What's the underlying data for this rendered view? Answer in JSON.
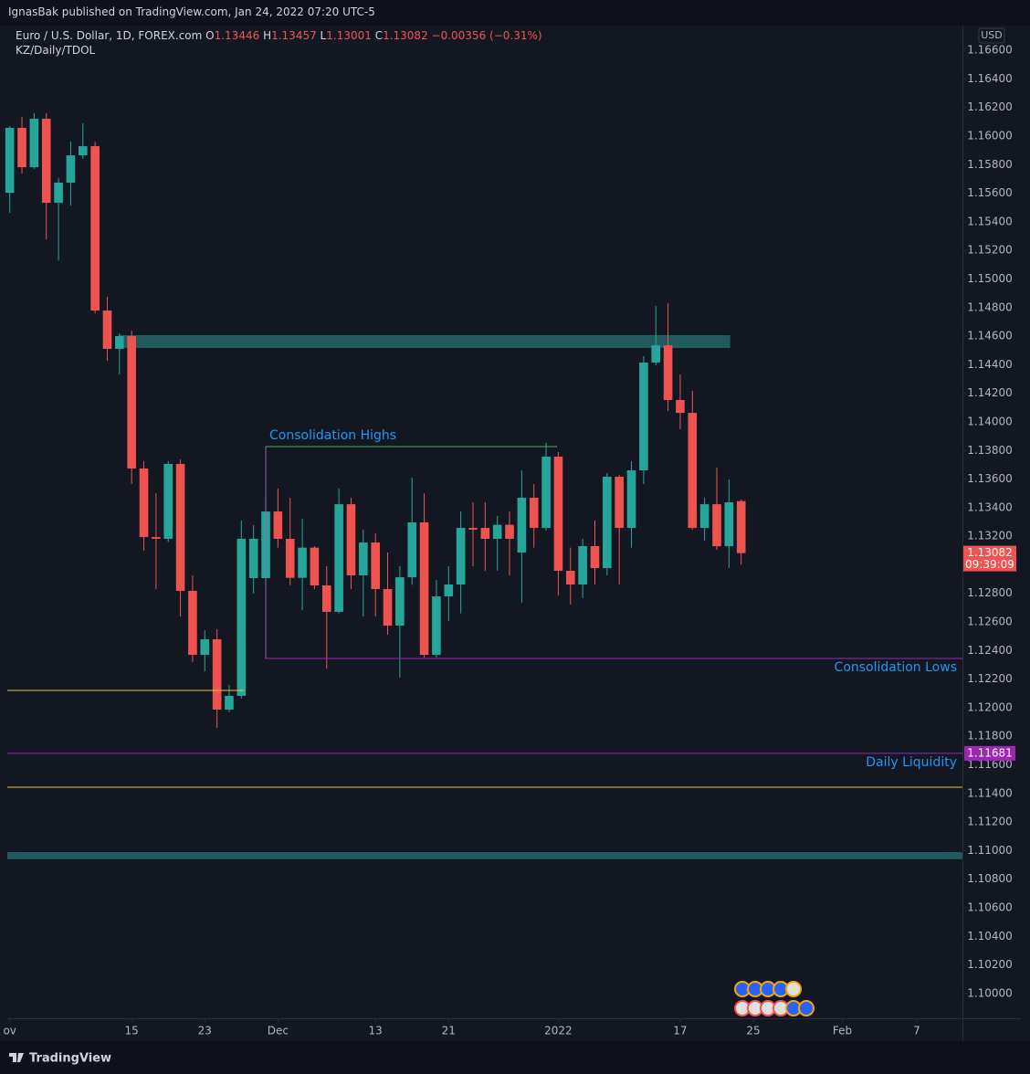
{
  "header": {
    "published": "IgnasBak published on TradingView.com, Jan 24, 2022 07:20 UTC-5",
    "symbol": "Euro / U.S. Dollar, 1D, FOREX.com",
    "ohlc_keys": [
      "O",
      "H",
      "L",
      "C"
    ],
    "change": "−0.00356 (−0.31%)",
    "indicator": "KZ/Daily/TDOL"
  },
  "chart_data": {
    "type": "candlestick",
    "up_color": "#26a69a",
    "down_color": "#ef5350",
    "open": [
      1.15603,
      1.16057,
      1.15782,
      1.16121,
      1.15533,
      1.15674,
      1.15865,
      1.15929,
      1.14779,
      1.14511,
      1.146,
      1.13674,
      1.13194,
      1.13182,
      1.13706,
      1.12818,
      1.1237,
      1.12479,
      1.11987,
      1.12083,
      1.12907,
      1.12907,
      1.13373,
      1.13182,
      1.12909,
      1.1312,
      1.12856,
      1.12671,
      1.13424,
      1.12926,
      1.13156,
      1.1283,
      1.12575,
      1.12913,
      1.13297,
      1.1237,
      1.12779,
      1.12862,
      1.13258,
      1.13258,
      1.13182,
      1.1328,
      1.13086,
      1.13469,
      1.13258,
      1.13757,
      1.12958,
      1.12862,
      1.13131,
      1.12977,
      1.13616,
      1.13258,
      1.13661,
      1.14415,
      1.14536,
      1.14153,
      1.14063,
      1.13258,
      1.13424,
      1.1313,
      1.13446
    ],
    "high": [
      1.1607,
      1.16134,
      1.16159,
      1.16159,
      1.15705,
      1.15961,
      1.16089,
      1.1596,
      1.14875,
      1.14619,
      1.14638,
      1.13725,
      1.135,
      1.13725,
      1.13737,
      1.12926,
      1.12543,
      1.1255,
      1.12159,
      1.1331,
      1.13278,
      1.135,
      1.13533,
      1.13469,
      1.13322,
      1.1313,
      1.1299,
      1.13533,
      1.13469,
      1.13246,
      1.1322,
      1.13086,
      1.1299,
      1.1361,
      1.135,
      1.12894,
      1.1299,
      1.13373,
      1.13437,
      1.13437,
      1.13342,
      1.13373,
      1.13661,
      1.13565,
      1.13853,
      1.13789,
      1.1312,
      1.13182,
      1.1331,
      1.13642,
      1.1363,
      1.13725,
      1.1446,
      1.14811,
      1.1483,
      1.14332,
      1.14217,
      1.13469,
      1.1368,
      1.13597,
      1.13457
    ],
    "low": [
      1.15463,
      1.15737,
      1.1577,
      1.15277,
      1.1513,
      1.15514,
      1.1584,
      1.1476,
      1.14428,
      1.14332,
      1.13565,
      1.13099,
      1.1283,
      1.1316,
      1.12639,
      1.12319,
      1.12255,
      1.11859,
      1.1197,
      1.12064,
      1.128,
      1.1285,
      1.1312,
      1.12858,
      1.12683,
      1.1283,
      1.12274,
      1.1266,
      1.1283,
      1.12639,
      1.12639,
      1.12511,
      1.1221,
      1.1286,
      1.12351,
      1.12351,
      1.12607,
      1.1266,
      1.1299,
      1.12958,
      1.1296,
      1.12926,
      1.12735,
      1.1312,
      1.1324,
      1.12786,
      1.12722,
      1.12767,
      1.12862,
      1.12926,
      1.12862,
      1.1312,
      1.13565,
      1.14396,
      1.14076,
      1.13948,
      1.13246,
      1.13169,
      1.13105,
      1.12978,
      1.13001
    ],
    "close": [
      1.16057,
      1.15782,
      1.16121,
      1.15533,
      1.15674,
      1.15865,
      1.15929,
      1.14779,
      1.14511,
      1.146,
      1.13674,
      1.13194,
      1.13182,
      1.13706,
      1.12818,
      1.1237,
      1.12479,
      1.11987,
      1.12083,
      1.13182,
      1.13182,
      1.13373,
      1.13182,
      1.12909,
      1.1312,
      1.12856,
      1.12671,
      1.13424,
      1.12926,
      1.13156,
      1.1283,
      1.12575,
      1.12913,
      1.13297,
      1.1237,
      1.12779,
      1.12862,
      1.13258,
      1.13246,
      1.13182,
      1.1328,
      1.13182,
      1.13469,
      1.13258,
      1.13757,
      1.12958,
      1.12862,
      1.13131,
      1.12977,
      1.13616,
      1.13258,
      1.13661,
      1.14415,
      1.14536,
      1.14153,
      1.14063,
      1.13258,
      1.13424,
      1.1313,
      1.13437,
      1.13082
    ],
    "xlim": [
      -0.2,
      78.15
    ],
    "ylim": [
      1.09827,
      1.16773
    ],
    "xticks": [
      {
        "value": 0,
        "label": "ov"
      },
      {
        "value": 10,
        "label": "15"
      },
      {
        "value": 16,
        "label": "23"
      },
      {
        "value": 22,
        "label": "Dec"
      },
      {
        "value": 30,
        "label": "13"
      },
      {
        "value": 36,
        "label": "21"
      },
      {
        "value": 45,
        "label": "2022"
      },
      {
        "value": 55,
        "label": "17"
      },
      {
        "value": 61,
        "label": "25"
      },
      {
        "value": 68.3,
        "label": "Feb"
      },
      {
        "value": 74.4,
        "label": "7"
      }
    ],
    "yticks": [
      {
        "value": 1.166,
        "label": "1.16600"
      },
      {
        "value": 1.164,
        "label": "1.16400"
      },
      {
        "value": 1.162,
        "label": "1.16200"
      },
      {
        "value": 1.16,
        "label": "1.16000"
      },
      {
        "value": 1.158,
        "label": "1.15800"
      },
      {
        "value": 1.156,
        "label": "1.15600"
      },
      {
        "value": 1.154,
        "label": "1.15400"
      },
      {
        "value": 1.152,
        "label": "1.15200"
      },
      {
        "value": 1.15,
        "label": "1.15000"
      },
      {
        "value": 1.148,
        "label": "1.14800"
      },
      {
        "value": 1.146,
        "label": "1.14600"
      },
      {
        "value": 1.144,
        "label": "1.14400"
      },
      {
        "value": 1.142,
        "label": "1.14200"
      },
      {
        "value": 1.14,
        "label": "1.14000"
      },
      {
        "value": 1.138,
        "label": "1.13800"
      },
      {
        "value": 1.136,
        "label": "1.13600"
      },
      {
        "value": 1.134,
        "label": "1.13400"
      },
      {
        "value": 1.132,
        "label": "1.13200"
      },
      {
        "value": 1.13,
        "label": "1.13000"
      },
      {
        "value": 1.128,
        "label": "1.12800"
      },
      {
        "value": 1.126,
        "label": "1.12600"
      },
      {
        "value": 1.124,
        "label": "1.12400"
      },
      {
        "value": 1.122,
        "label": "1.12200"
      },
      {
        "value": 1.12,
        "label": "1.12000"
      },
      {
        "value": 1.118,
        "label": "1.11800"
      },
      {
        "value": 1.116,
        "label": "1.11600"
      },
      {
        "value": 1.114,
        "label": "1.11400"
      },
      {
        "value": 1.112,
        "label": "1.11200"
      },
      {
        "value": 1.11,
        "label": "1.11000"
      },
      {
        "value": 1.108,
        "label": "1.10800"
      },
      {
        "value": 1.106,
        "label": "1.10600"
      },
      {
        "value": 1.104,
        "label": "1.10400"
      },
      {
        "value": 1.102,
        "label": "1.10200"
      },
      {
        "value": 1.1,
        "label": "1.10000"
      }
    ],
    "currency": "USD",
    "countdown": "09:39:09",
    "zones": [
      {
        "top": 1.14607,
        "bottom": 1.14517,
        "from": 9,
        "to": 59.1,
        "color": "#1f5a5c"
      },
      {
        "top": 1.1099,
        "bottom": 1.1094,
        "from": null,
        "to": null,
        "color": "#1f5a5c"
      }
    ],
    "lines": [
      {
        "value": 1.13827,
        "from": 21,
        "to": 44.9,
        "color": "#4caf50",
        "label": "Consolidation Highs",
        "label_position": "top-left"
      },
      {
        "value": 1.12345,
        "from": 21,
        "to": null,
        "color": "#9c27b0",
        "label": "Consolidation Lows",
        "label_position": "bottom-right"
      },
      {
        "value": 1.12121,
        "from": null,
        "to": 19.2,
        "color": "#e8c547"
      },
      {
        "value": 1.11681,
        "from": null,
        "to": null,
        "color": "#9c27b0",
        "label": "Daily Liquidity",
        "label_position": "bottom-right",
        "price_label": true
      },
      {
        "value": 1.11444,
        "from": null,
        "to": null,
        "color": "#e8c547"
      }
    ]
  },
  "footer": {
    "brand": "TradingView"
  }
}
